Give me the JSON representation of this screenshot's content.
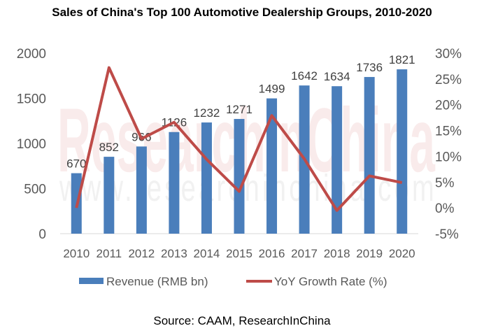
{
  "chart_data": {
    "type": "bar",
    "title": "Sales of China's Top 100 Automotive Dealership Groups, 2010-2020",
    "source": "Source: CAAM, ResearchInChina",
    "watermark": [
      "ResearchInChina",
      "www.researchinchina.com"
    ],
    "categories": [
      "2010",
      "2011",
      "2012",
      "2013",
      "2014",
      "2015",
      "2016",
      "2017",
      "2018",
      "2019",
      "2020"
    ],
    "series": [
      {
        "name": "Revenue (RMB bn)",
        "type": "bar",
        "axis": "left",
        "color": "#4a7ebb",
        "values": [
          670,
          852,
          966,
          1126,
          1232,
          1271,
          1499,
          1642,
          1634,
          1736,
          1821
        ],
        "data_labels": [
          "670",
          "852",
          "966",
          "1126",
          "1232",
          "1271",
          "1499",
          "1642",
          "1634",
          "1736",
          "1821"
        ]
      },
      {
        "name": "YoY Growth Rate (%)",
        "type": "line",
        "axis": "right",
        "color": "#be4b48",
        "values": [
          0,
          27.2,
          13.4,
          16.6,
          9.4,
          3.2,
          17.9,
          9.5,
          -0.5,
          6.2,
          4.9
        ]
      }
    ],
    "y_left": {
      "ylim": [
        0,
        2000
      ],
      "ticks": [
        "0",
        "500",
        "1000",
        "1500",
        "2000"
      ],
      "tick_values": [
        0,
        500,
        1000,
        1500,
        2000
      ]
    },
    "y_right": {
      "ylim": [
        -5,
        30
      ],
      "ticks": [
        "-5%",
        "0%",
        "5%",
        "10%",
        "15%",
        "20%",
        "25%",
        "30%"
      ],
      "tick_values": [
        -5,
        0,
        5,
        10,
        15,
        20,
        25,
        30
      ]
    },
    "xlabel": "",
    "ylabel": "",
    "grid": false,
    "legend": "bottom"
  }
}
